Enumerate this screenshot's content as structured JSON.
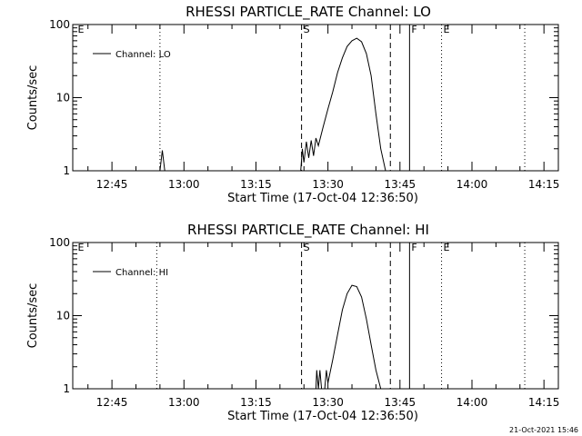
{
  "chart_data": [
    {
      "type": "line",
      "title": "RHESSI PARTICLE_RATE Channel: LO",
      "xlabel": "Start Time (17-Oct-04 12:36:50)",
      "ylabel": "Counts/sec",
      "y_scale": "log",
      "ylim": [
        1,
        100
      ],
      "y_tick_labels": [
        "1",
        "10",
        "100"
      ],
      "xlim": [
        "12:36:50",
        "14:18:00"
      ],
      "x_tick_labels": [
        "12:45",
        "13:00",
        "13:15",
        "13:30",
        "13:45",
        "14:00",
        "14:15"
      ],
      "grid": false,
      "legend": {
        "position": "top-left",
        "entries": [
          "Channel: LO"
        ]
      },
      "markers": [
        {
          "time": "12:37:30",
          "label": "E",
          "style": "none"
        },
        {
          "time": "12:55:00",
          "label": "",
          "style": "dotted"
        },
        {
          "time": "13:24:30",
          "label": "S",
          "style": "dashed"
        },
        {
          "time": "13:43:00",
          "label": "",
          "style": "dashed"
        },
        {
          "time": "13:47:00",
          "label": "F",
          "style": "solid"
        },
        {
          "time": "13:53:40",
          "label": "E",
          "style": "dotted"
        },
        {
          "time": "14:11:00",
          "label": "",
          "style": "dotted"
        }
      ],
      "series": [
        {
          "values": [
            [
              "12:55:00",
              1.0
            ],
            [
              "12:55:30",
              1.9
            ],
            [
              "12:56:00",
              1.0
            ],
            [
              "13:24:20",
              1.0
            ],
            [
              "13:24:40",
              2.0
            ],
            [
              "13:25:00",
              1.3
            ],
            [
              "13:25:30",
              2.5
            ],
            [
              "13:26:00",
              1.5
            ],
            [
              "13:26:30",
              2.6
            ],
            [
              "13:27:00",
              1.6
            ],
            [
              "13:27:30",
              2.8
            ],
            [
              "13:28:00",
              2.2
            ],
            [
              "13:29:00",
              4.0
            ],
            [
              "13:30:00",
              7.0
            ],
            [
              "13:31:00",
              12.0
            ],
            [
              "13:32:00",
              22.0
            ],
            [
              "13:33:00",
              35.0
            ],
            [
              "13:34:00",
              50.0
            ],
            [
              "13:35:00",
              60.0
            ],
            [
              "13:36:00",
              65.0
            ],
            [
              "13:37:00",
              58.0
            ],
            [
              "13:38:00",
              40.0
            ],
            [
              "13:39:00",
              20.0
            ],
            [
              "13:40:00",
              6.0
            ],
            [
              "13:41:00",
              2.0
            ],
            [
              "13:42:00",
              1.0
            ]
          ]
        }
      ]
    },
    {
      "type": "line",
      "title": "RHESSI PARTICLE_RATE Channel: HI",
      "xlabel": "Start Time (17-Oct-04 12:36:50)",
      "ylabel": "Counts/sec",
      "y_scale": "log",
      "ylim": [
        1,
        100
      ],
      "y_tick_labels": [
        "1",
        "10",
        "100"
      ],
      "xlim": [
        "12:36:50",
        "14:18:00"
      ],
      "x_tick_labels": [
        "12:45",
        "13:00",
        "13:15",
        "13:30",
        "13:45",
        "14:00",
        "14:15"
      ],
      "grid": false,
      "legend": {
        "position": "top-left",
        "entries": [
          "Channel: HI"
        ]
      },
      "markers": [
        {
          "time": "12:37:30",
          "label": "E",
          "style": "none"
        },
        {
          "time": "12:54:20",
          "label": "",
          "style": "dotted"
        },
        {
          "time": "13:24:30",
          "label": "S",
          "style": "dashed"
        },
        {
          "time": "13:43:00",
          "label": "",
          "style": "dashed"
        },
        {
          "time": "13:47:00",
          "label": "F",
          "style": "solid"
        },
        {
          "time": "13:53:40",
          "label": "E",
          "style": "dotted"
        },
        {
          "time": "14:11:00",
          "label": "",
          "style": "dotted"
        }
      ],
      "series": [
        {
          "values": [
            [
              "13:27:30",
              1.0
            ],
            [
              "13:27:40",
              1.8
            ],
            [
              "13:28:00",
              1.0
            ],
            [
              "13:28:20",
              1.8
            ],
            [
              "13:28:40",
              1.0
            ],
            [
              "13:29:20",
              1.0
            ],
            [
              "13:29:40",
              1.8
            ],
            [
              "13:30:00",
              1.2
            ],
            [
              "13:31:00",
              2.5
            ],
            [
              "13:32:00",
              5.5
            ],
            [
              "13:33:00",
              12.0
            ],
            [
              "13:34:00",
              20.0
            ],
            [
              "13:35:00",
              26.0
            ],
            [
              "13:36:00",
              25.0
            ],
            [
              "13:37:00",
              18.0
            ],
            [
              "13:38:00",
              9.0
            ],
            [
              "13:39:00",
              4.0
            ],
            [
              "13:40:00",
              1.8
            ],
            [
              "13:41:00",
              1.0
            ]
          ]
        }
      ]
    }
  ],
  "stamp": "21-Oct-2021 15:46"
}
